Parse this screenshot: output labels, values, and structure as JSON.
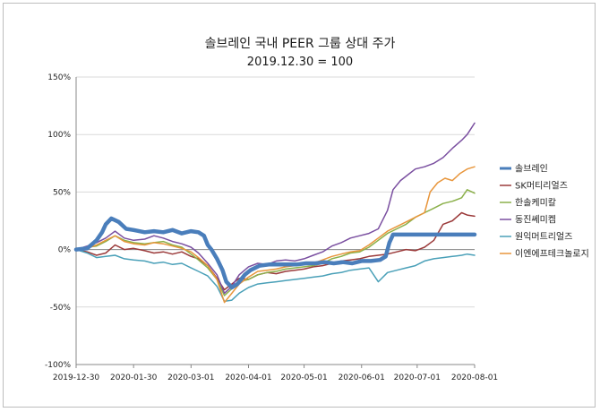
{
  "chart_data": {
    "type": "line",
    "title": "솔브레인 국내 PEER 그룹 상대 주가",
    "subtitle": "2019.12.30 = 100",
    "xlabel": "",
    "ylabel": "",
    "ylim": [
      -100,
      150
    ],
    "y_ticks": [
      "150%",
      "100%",
      "50%",
      "0%",
      "-50%",
      "-100%"
    ],
    "x_ticks": [
      "2019-12-30",
      "2020-01-30",
      "2020-03-01",
      "2020-04-01",
      "2020-05-01",
      "2020-06-01",
      "2020-07-01",
      "2020-08-01"
    ],
    "x_range": [
      "2019-12-30",
      "2020-08-01"
    ],
    "grid": "horizontal",
    "legend_position": "right",
    "series": [
      {
        "name": "솔브레인",
        "color": "#4a7ebb",
        "width": 4.5,
        "points": [
          [
            "2019-12-30",
            0
          ],
          [
            "2020-01-05",
            1
          ],
          [
            "2020-01-10",
            8
          ],
          [
            "2020-01-13",
            15
          ],
          [
            "2020-01-15",
            22
          ],
          [
            "2020-01-18",
            27
          ],
          [
            "2020-01-22",
            24
          ],
          [
            "2020-01-26",
            18
          ],
          [
            "2020-01-30",
            17
          ],
          [
            "2020-02-05",
            15
          ],
          [
            "2020-02-10",
            16
          ],
          [
            "2020-02-15",
            15
          ],
          [
            "2020-02-20",
            17
          ],
          [
            "2020-02-25",
            14
          ],
          [
            "2020-03-01",
            16
          ],
          [
            "2020-03-05",
            15
          ],
          [
            "2020-03-08",
            12
          ],
          [
            "2020-03-10",
            4
          ],
          [
            "2020-03-12",
            0
          ],
          [
            "2020-03-15",
            -8
          ],
          [
            "2020-03-18",
            -18
          ],
          [
            "2020-03-20",
            -28
          ],
          [
            "2020-03-23",
            -33
          ],
          [
            "2020-03-26",
            -30
          ],
          [
            "2020-03-30",
            -22
          ],
          [
            "2020-04-02",
            -18
          ],
          [
            "2020-04-07",
            -14
          ],
          [
            "2020-04-12",
            -13
          ],
          [
            "2020-04-17",
            -13
          ],
          [
            "2020-04-22",
            -13
          ],
          [
            "2020-04-27",
            -13
          ],
          [
            "2020-05-02",
            -12
          ],
          [
            "2020-05-07",
            -12
          ],
          [
            "2020-05-12",
            -11
          ],
          [
            "2020-05-17",
            -12
          ],
          [
            "2020-05-22",
            -11
          ],
          [
            "2020-05-27",
            -12
          ],
          [
            "2020-06-01",
            -10
          ],
          [
            "2020-06-06",
            -10
          ],
          [
            "2020-06-11",
            -9
          ],
          [
            "2020-06-14",
            -6
          ],
          [
            "2020-06-16",
            6
          ],
          [
            "2020-06-18",
            13
          ],
          [
            "2020-06-25",
            13
          ],
          [
            "2020-07-05",
            13
          ],
          [
            "2020-07-15",
            13
          ],
          [
            "2020-07-25",
            13
          ],
          [
            "2020-08-01",
            13
          ]
        ]
      },
      {
        "name": "SK머티리얼즈",
        "color": "#9b3a3a",
        "width": 1.5,
        "points": [
          [
            "2019-12-30",
            0
          ],
          [
            "2020-01-05",
            -2
          ],
          [
            "2020-01-10",
            -5
          ],
          [
            "2020-01-15",
            -3
          ],
          [
            "2020-01-20",
            4
          ],
          [
            "2020-01-25",
            0
          ],
          [
            "2020-01-30",
            1
          ],
          [
            "2020-02-05",
            -1
          ],
          [
            "2020-02-10",
            -3
          ],
          [
            "2020-02-15",
            -2
          ],
          [
            "2020-02-20",
            -4
          ],
          [
            "2020-02-25",
            -2
          ],
          [
            "2020-03-01",
            -6
          ],
          [
            "2020-03-05",
            -8
          ],
          [
            "2020-03-10",
            -14
          ],
          [
            "2020-03-15",
            -25
          ],
          [
            "2020-03-19",
            -35
          ],
          [
            "2020-03-23",
            -30
          ],
          [
            "2020-03-27",
            -25
          ],
          [
            "2020-04-01",
            -26
          ],
          [
            "2020-04-06",
            -22
          ],
          [
            "2020-04-11",
            -20
          ],
          [
            "2020-04-16",
            -21
          ],
          [
            "2020-04-21",
            -19
          ],
          [
            "2020-04-26",
            -18
          ],
          [
            "2020-05-01",
            -17
          ],
          [
            "2020-05-06",
            -15
          ],
          [
            "2020-05-11",
            -14
          ],
          [
            "2020-05-16",
            -12
          ],
          [
            "2020-05-21",
            -10
          ],
          [
            "2020-05-26",
            -9
          ],
          [
            "2020-05-31",
            -8
          ],
          [
            "2020-06-05",
            -6
          ],
          [
            "2020-06-10",
            -5
          ],
          [
            "2020-06-15",
            -4
          ],
          [
            "2020-06-20",
            -2
          ],
          [
            "2020-06-25",
            0
          ],
          [
            "2020-06-30",
            -1
          ],
          [
            "2020-07-05",
            2
          ],
          [
            "2020-07-10",
            8
          ],
          [
            "2020-07-15",
            22
          ],
          [
            "2020-07-20",
            25
          ],
          [
            "2020-07-25",
            32
          ],
          [
            "2020-07-28",
            30
          ],
          [
            "2020-08-01",
            29
          ]
        ]
      },
      {
        "name": "한솔케미칼",
        "color": "#8bb04a",
        "width": 1.5,
        "points": [
          [
            "2019-12-30",
            0
          ],
          [
            "2020-01-05",
            2
          ],
          [
            "2020-01-10",
            3
          ],
          [
            "2020-01-15",
            7
          ],
          [
            "2020-01-20",
            12
          ],
          [
            "2020-01-25",
            8
          ],
          [
            "2020-01-30",
            6
          ],
          [
            "2020-02-05",
            5
          ],
          [
            "2020-02-10",
            6
          ],
          [
            "2020-02-15",
            7
          ],
          [
            "2020-02-20",
            4
          ],
          [
            "2020-02-25",
            2
          ],
          [
            "2020-03-01",
            -4
          ],
          [
            "2020-03-05",
            -9
          ],
          [
            "2020-03-10",
            -16
          ],
          [
            "2020-03-15",
            -26
          ],
          [
            "2020-03-19",
            -40
          ],
          [
            "2020-03-23",
            -34
          ],
          [
            "2020-03-27",
            -28
          ],
          [
            "2020-04-01",
            -26
          ],
          [
            "2020-04-06",
            -22
          ],
          [
            "2020-04-11",
            -20
          ],
          [
            "2020-04-16",
            -19
          ],
          [
            "2020-04-21",
            -17
          ],
          [
            "2020-04-26",
            -16
          ],
          [
            "2020-05-01",
            -15
          ],
          [
            "2020-05-06",
            -14
          ],
          [
            "2020-05-11",
            -12
          ],
          [
            "2020-05-16",
            -8
          ],
          [
            "2020-05-21",
            -6
          ],
          [
            "2020-05-26",
            -3
          ],
          [
            "2020-05-31",
            -2
          ],
          [
            "2020-06-05",
            2
          ],
          [
            "2020-06-10",
            8
          ],
          [
            "2020-06-15",
            14
          ],
          [
            "2020-06-20",
            18
          ],
          [
            "2020-06-25",
            22
          ],
          [
            "2020-06-30",
            28
          ],
          [
            "2020-07-05",
            32
          ],
          [
            "2020-07-10",
            36
          ],
          [
            "2020-07-15",
            40
          ],
          [
            "2020-07-20",
            42
          ],
          [
            "2020-07-25",
            45
          ],
          [
            "2020-07-28",
            52
          ],
          [
            "2020-08-01",
            49
          ]
        ]
      },
      {
        "name": "동진쎄미켐",
        "color": "#7a4fa0",
        "width": 1.5,
        "points": [
          [
            "2019-12-30",
            0
          ],
          [
            "2020-01-05",
            3
          ],
          [
            "2020-01-10",
            6
          ],
          [
            "2020-01-15",
            10
          ],
          [
            "2020-01-20",
            16
          ],
          [
            "2020-01-25",
            10
          ],
          [
            "2020-01-30",
            8
          ],
          [
            "2020-02-05",
            9
          ],
          [
            "2020-02-10",
            12
          ],
          [
            "2020-02-15",
            10
          ],
          [
            "2020-02-20",
            7
          ],
          [
            "2020-02-25",
            5
          ],
          [
            "2020-03-01",
            2
          ],
          [
            "2020-03-05",
            -3
          ],
          [
            "2020-03-10",
            -12
          ],
          [
            "2020-03-15",
            -22
          ],
          [
            "2020-03-19",
            -38
          ],
          [
            "2020-03-23",
            -32
          ],
          [
            "2020-03-27",
            -22
          ],
          [
            "2020-04-01",
            -15
          ],
          [
            "2020-04-06",
            -12
          ],
          [
            "2020-04-11",
            -13
          ],
          [
            "2020-04-16",
            -10
          ],
          [
            "2020-04-21",
            -9
          ],
          [
            "2020-04-26",
            -10
          ],
          [
            "2020-05-01",
            -8
          ],
          [
            "2020-05-06",
            -5
          ],
          [
            "2020-05-11",
            -2
          ],
          [
            "2020-05-16",
            3
          ],
          [
            "2020-05-21",
            6
          ],
          [
            "2020-05-26",
            10
          ],
          [
            "2020-05-31",
            12
          ],
          [
            "2020-06-05",
            14
          ],
          [
            "2020-06-10",
            18
          ],
          [
            "2020-06-15",
            34
          ],
          [
            "2020-06-18",
            52
          ],
          [
            "2020-06-22",
            60
          ],
          [
            "2020-06-26",
            65
          ],
          [
            "2020-06-30",
            70
          ],
          [
            "2020-07-05",
            72
          ],
          [
            "2020-07-10",
            75
          ],
          [
            "2020-07-15",
            80
          ],
          [
            "2020-07-20",
            88
          ],
          [
            "2020-07-25",
            95
          ],
          [
            "2020-07-28",
            100
          ],
          [
            "2020-08-01",
            110
          ]
        ]
      },
      {
        "name": "원익머트리얼즈",
        "color": "#4aa0b8",
        "width": 1.5,
        "points": [
          [
            "2019-12-30",
            0
          ],
          [
            "2020-01-05",
            -3
          ],
          [
            "2020-01-10",
            -7
          ],
          [
            "2020-01-15",
            -6
          ],
          [
            "2020-01-20",
            -5
          ],
          [
            "2020-01-25",
            -8
          ],
          [
            "2020-01-30",
            -9
          ],
          [
            "2020-02-05",
            -10
          ],
          [
            "2020-02-10",
            -12
          ],
          [
            "2020-02-15",
            -11
          ],
          [
            "2020-02-20",
            -13
          ],
          [
            "2020-02-25",
            -12
          ],
          [
            "2020-03-01",
            -16
          ],
          [
            "2020-03-05",
            -19
          ],
          [
            "2020-03-10",
            -23
          ],
          [
            "2020-03-15",
            -32
          ],
          [
            "2020-03-19",
            -45
          ],
          [
            "2020-03-23",
            -44
          ],
          [
            "2020-03-27",
            -38
          ],
          [
            "2020-04-01",
            -33
          ],
          [
            "2020-04-06",
            -30
          ],
          [
            "2020-04-11",
            -29
          ],
          [
            "2020-04-16",
            -28
          ],
          [
            "2020-04-21",
            -27
          ],
          [
            "2020-04-26",
            -26
          ],
          [
            "2020-05-01",
            -25
          ],
          [
            "2020-05-06",
            -24
          ],
          [
            "2020-05-11",
            -23
          ],
          [
            "2020-05-16",
            -21
          ],
          [
            "2020-05-21",
            -20
          ],
          [
            "2020-05-26",
            -18
          ],
          [
            "2020-05-31",
            -17
          ],
          [
            "2020-06-05",
            -16
          ],
          [
            "2020-06-10",
            -28
          ],
          [
            "2020-06-15",
            -20
          ],
          [
            "2020-06-20",
            -18
          ],
          [
            "2020-06-25",
            -16
          ],
          [
            "2020-06-30",
            -14
          ],
          [
            "2020-07-05",
            -10
          ],
          [
            "2020-07-10",
            -8
          ],
          [
            "2020-07-15",
            -7
          ],
          [
            "2020-07-20",
            -6
          ],
          [
            "2020-07-25",
            -5
          ],
          [
            "2020-07-28",
            -4
          ],
          [
            "2020-08-01",
            -5
          ]
        ]
      },
      {
        "name": "이엔에프테크놀로지",
        "color": "#e8963c",
        "width": 1.5,
        "points": [
          [
            "2019-12-30",
            0
          ],
          [
            "2020-01-05",
            1
          ],
          [
            "2020-01-10",
            4
          ],
          [
            "2020-01-15",
            8
          ],
          [
            "2020-01-20",
            12
          ],
          [
            "2020-01-25",
            7
          ],
          [
            "2020-01-30",
            5
          ],
          [
            "2020-02-05",
            4
          ],
          [
            "2020-02-10",
            6
          ],
          [
            "2020-02-15",
            5
          ],
          [
            "2020-02-20",
            3
          ],
          [
            "2020-02-25",
            1
          ],
          [
            "2020-03-01",
            -2
          ],
          [
            "2020-03-05",
            -7
          ],
          [
            "2020-03-10",
            -14
          ],
          [
            "2020-03-15",
            -26
          ],
          [
            "2020-03-19",
            -46
          ],
          [
            "2020-03-23",
            -38
          ],
          [
            "2020-03-27",
            -30
          ],
          [
            "2020-04-01",
            -24
          ],
          [
            "2020-04-06",
            -19
          ],
          [
            "2020-04-11",
            -18
          ],
          [
            "2020-04-16",
            -17
          ],
          [
            "2020-04-21",
            -15
          ],
          [
            "2020-04-26",
            -14
          ],
          [
            "2020-05-01",
            -13
          ],
          [
            "2020-05-06",
            -12
          ],
          [
            "2020-05-11",
            -9
          ],
          [
            "2020-05-16",
            -6
          ],
          [
            "2020-05-21",
            -4
          ],
          [
            "2020-05-26",
            -2
          ],
          [
            "2020-05-31",
            -1
          ],
          [
            "2020-06-05",
            4
          ],
          [
            "2020-06-10",
            10
          ],
          [
            "2020-06-15",
            16
          ],
          [
            "2020-06-20",
            20
          ],
          [
            "2020-06-25",
            24
          ],
          [
            "2020-06-30",
            28
          ],
          [
            "2020-07-05",
            32
          ],
          [
            "2020-07-08",
            50
          ],
          [
            "2020-07-12",
            58
          ],
          [
            "2020-07-16",
            62
          ],
          [
            "2020-07-20",
            60
          ],
          [
            "2020-07-24",
            66
          ],
          [
            "2020-07-28",
            70
          ],
          [
            "2020-08-01",
            72
          ]
        ]
      }
    ]
  }
}
